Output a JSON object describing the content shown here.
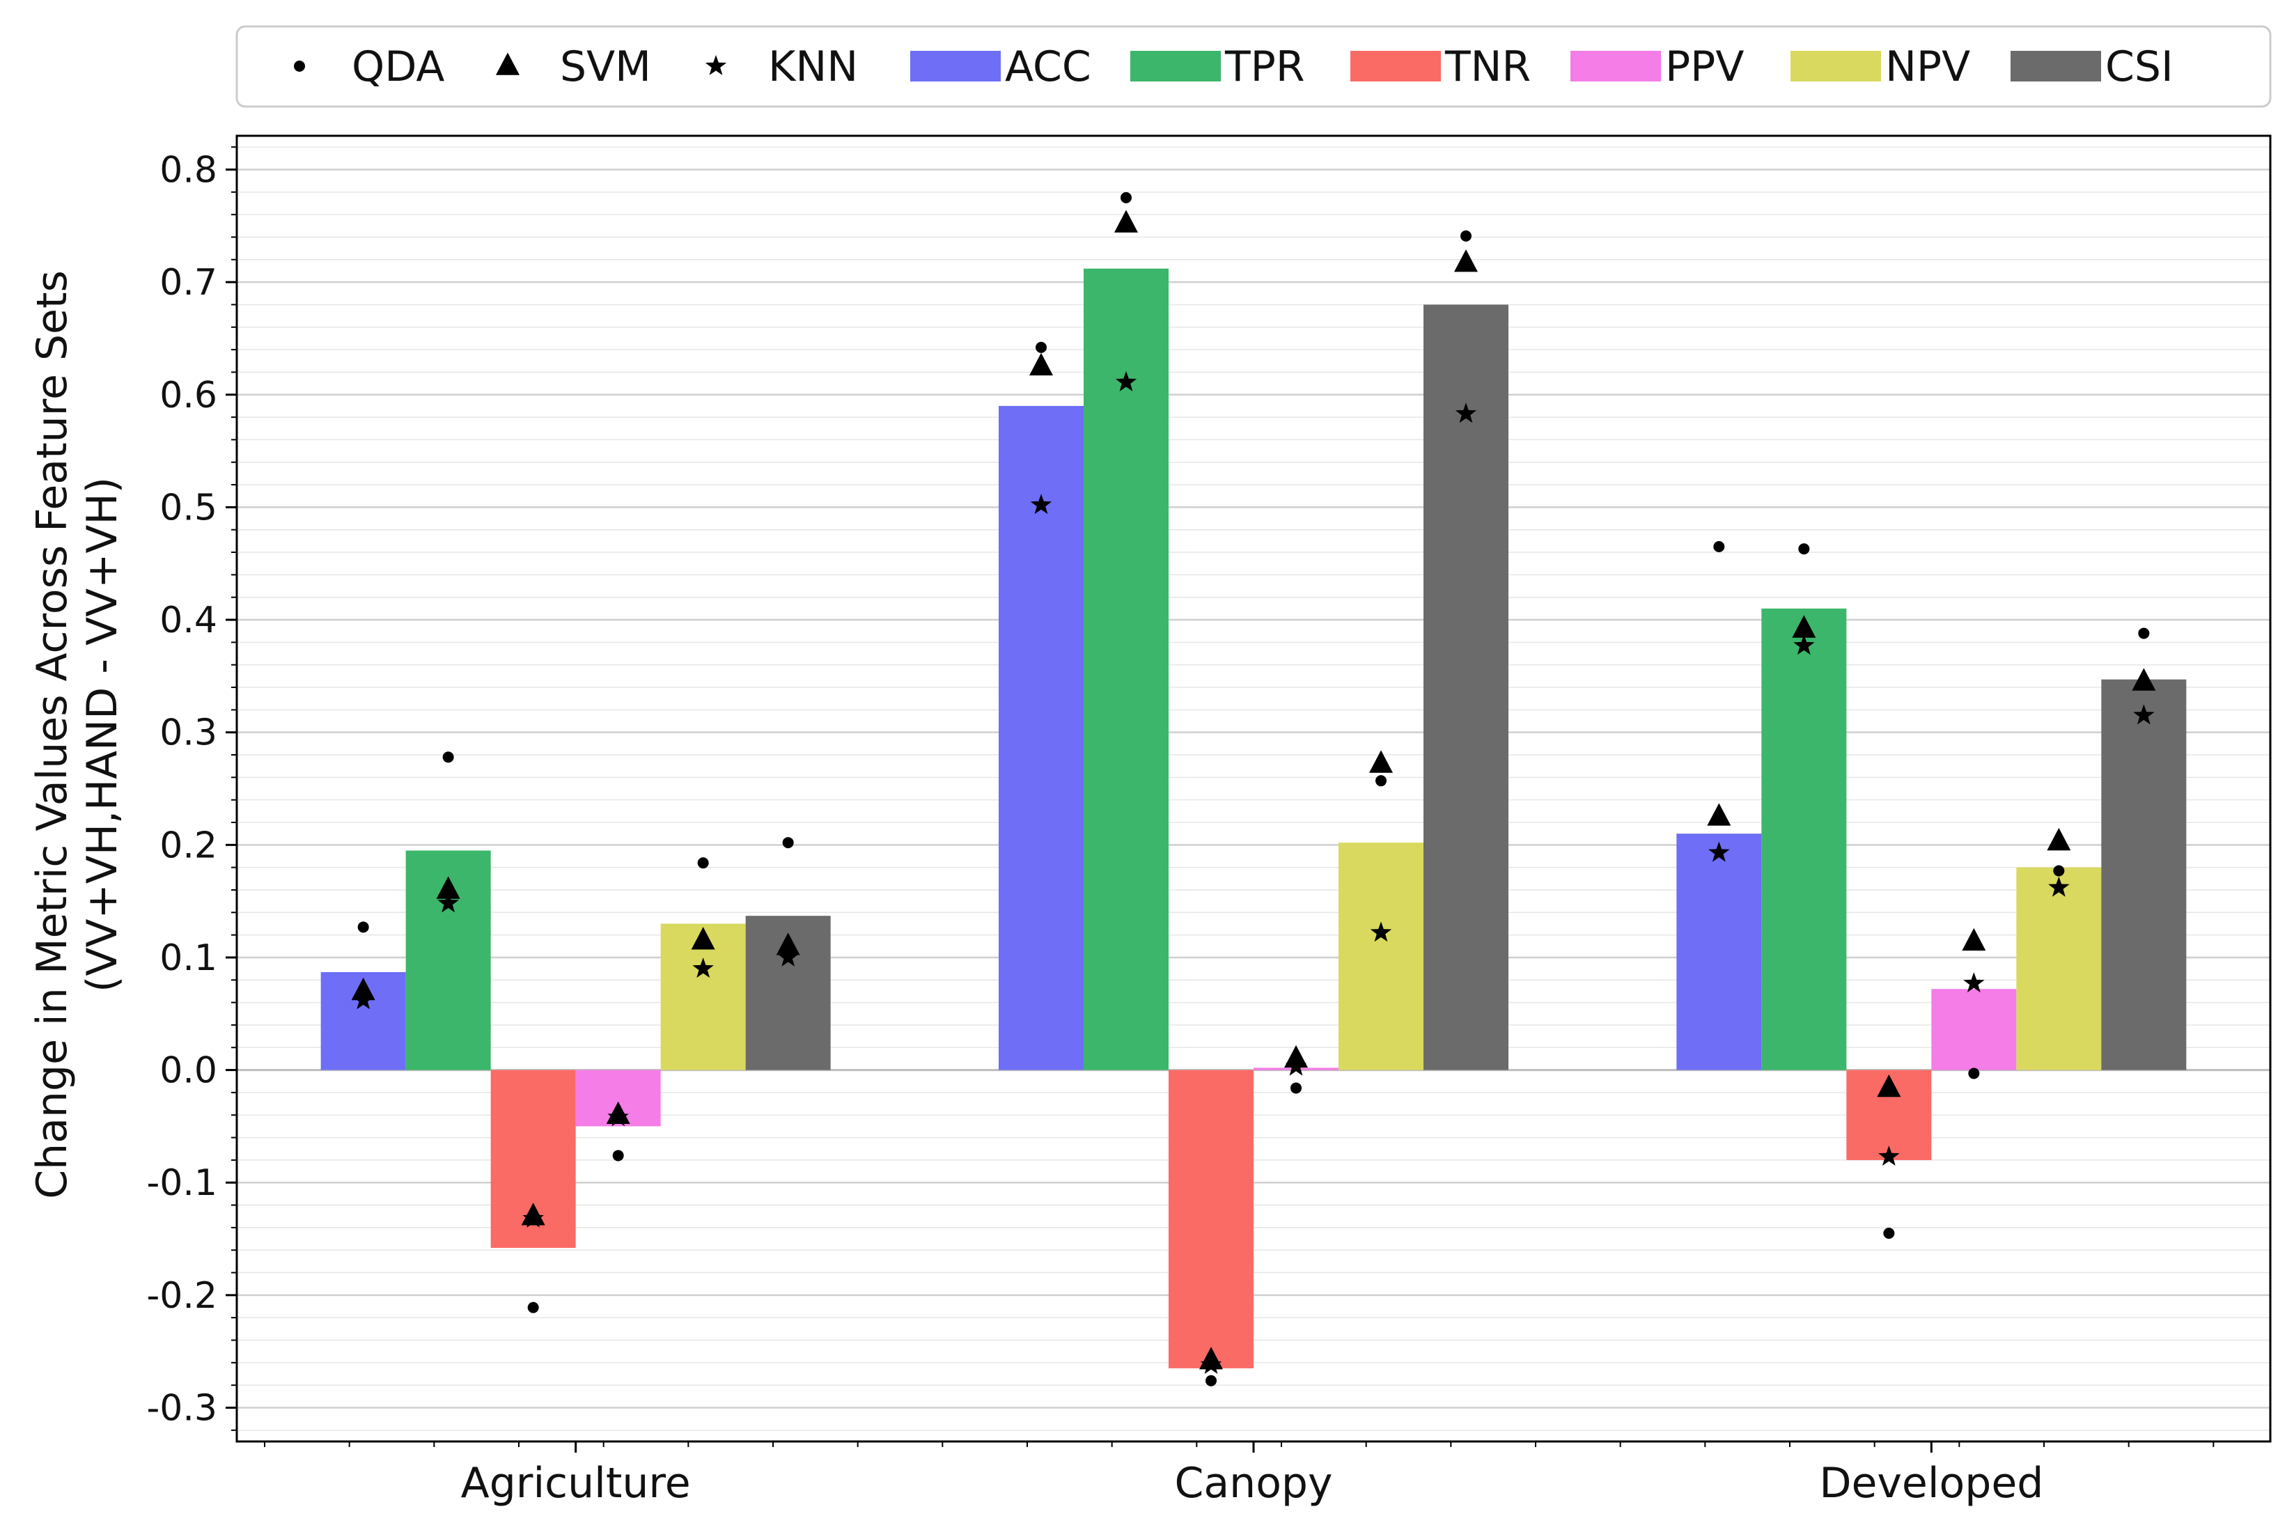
{
  "chart_data": {
    "type": "bar",
    "title": "",
    "xlabel": "",
    "ylabel": "Change in Metric Values Across Feature Sets",
    "ylabel2": "(VV+VH,HAND - VV+VH)",
    "ylim": [
      -0.33,
      0.83
    ],
    "yticks": [
      -0.3,
      -0.2,
      -0.1,
      0.0,
      0.1,
      0.2,
      0.3,
      0.4,
      0.5,
      0.6,
      0.7,
      0.8
    ],
    "ytick_labels": [
      "-0.3",
      "-0.2",
      "-0.1",
      "0.0",
      "0.1",
      "0.2",
      "0.3",
      "0.4",
      "0.5",
      "0.6",
      "0.7",
      "0.8"
    ],
    "grid": "on",
    "legend_position": "top",
    "categories": [
      "Agriculture",
      "Canopy",
      "Developed"
    ],
    "series": [
      {
        "name": "ACC",
        "color": "#6e6ef7",
        "values": [
          0.087,
          0.59,
          0.21
        ]
      },
      {
        "name": "TPR",
        "color": "#3cb66a",
        "values": [
          0.195,
          0.712,
          0.41
        ]
      },
      {
        "name": "TNR",
        "color": "#fb6b66",
        "values": [
          -0.158,
          -0.265,
          -0.08
        ]
      },
      {
        "name": "PPV",
        "color": "#f47de7",
        "values": [
          -0.05,
          0.002,
          0.072
        ]
      },
      {
        "name": "NPV",
        "color": "#d9d95f",
        "values": [
          0.13,
          0.202,
          0.18
        ]
      },
      {
        "name": "CSI",
        "color": "#6b6b6b",
        "values": [
          0.137,
          0.68,
          0.347
        ]
      }
    ],
    "classifiers": [
      {
        "name": "QDA",
        "marker": "circle",
        "values": [
          [
            0.127,
            0.278,
            -0.211,
            -0.076,
            0.184,
            0.202
          ],
          [
            0.642,
            0.775,
            -0.276,
            -0.016,
            0.257,
            0.741
          ],
          [
            0.465,
            0.463,
            -0.145,
            -0.003,
            0.177,
            0.388
          ]
        ]
      },
      {
        "name": "SVM",
        "marker": "triangle",
        "values": [
          [
            0.07,
            0.16,
            -0.13,
            -0.04,
            0.115,
            0.11
          ],
          [
            0.625,
            0.752,
            -0.258,
            0.01,
            0.272,
            0.717
          ],
          [
            0.225,
            0.392,
            -0.016,
            0.114,
            0.203,
            0.345
          ]
        ]
      },
      {
        "name": "KNN",
        "marker": "star",
        "values": [
          [
            0.062,
            0.148,
            -0.132,
            -0.042,
            0.09,
            0.1
          ],
          [
            0.502,
            0.611,
            -0.262,
            0.003,
            0.122,
            0.583
          ],
          [
            0.193,
            0.377,
            -0.077,
            0.077,
            0.162,
            0.315
          ]
        ]
      }
    ]
  }
}
